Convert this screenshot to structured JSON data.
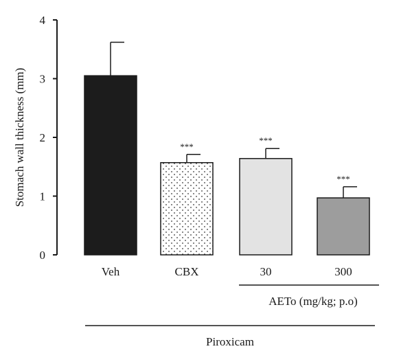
{
  "chart_data": {
    "type": "bar",
    "title": "",
    "xlabel": "",
    "ylabel": "Stomach wall thickness (mm)",
    "ylim": [
      0,
      4
    ],
    "yticks": [
      0,
      1,
      2,
      3,
      4
    ],
    "grid": false,
    "categories": [
      "Veh",
      "CBX",
      "30",
      "300"
    ],
    "values": [
      3.05,
      1.57,
      1.64,
      0.97
    ],
    "errors": [
      0.57,
      0.14,
      0.17,
      0.19
    ],
    "annotations": [
      "",
      "***",
      "***",
      "***"
    ],
    "fills": [
      "solid-black",
      "white-dotted",
      "light-gray",
      "mid-gray"
    ],
    "colors": [
      "#1c1c1c",
      "#ffffff",
      "#e3e3e3",
      "#9d9d9d"
    ],
    "group_labels": {
      "aeto": "AETo (mg/kg; p.o)",
      "piroxicam": "Piroxicam"
    }
  }
}
